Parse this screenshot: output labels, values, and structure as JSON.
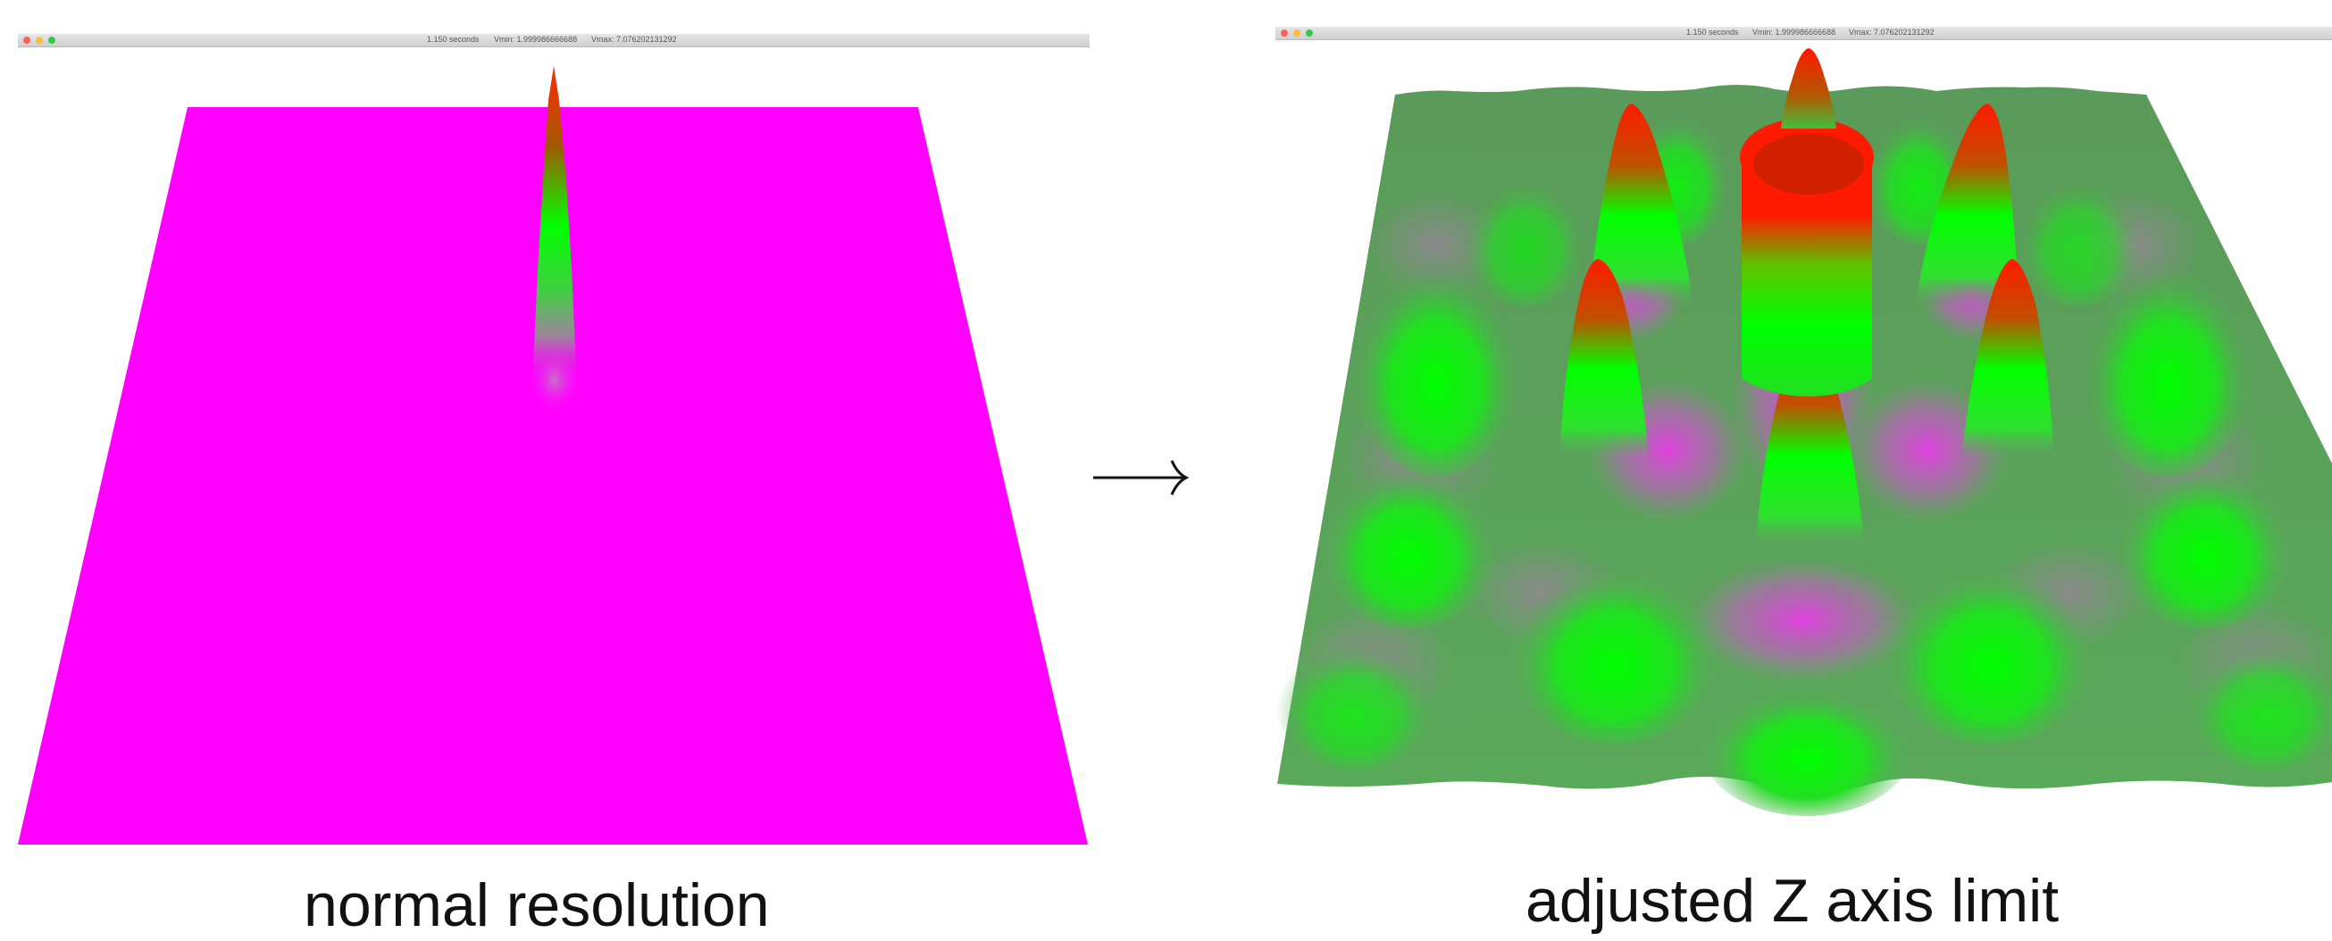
{
  "left_panel": {
    "title_seconds": "1.150 seconds",
    "title_vmin": "Vmin: 1.999986666688",
    "title_vmax": "Vmax: 7.076202131292",
    "caption": "normal resolution"
  },
  "right_panel": {
    "title_seconds": "1.150 seconds",
    "title_vmin": "Vmin: 1.999986666688",
    "title_vmax": "Vmax: 7.076202131292",
    "caption": "adjusted Z axis limit"
  },
  "arrow_icon": "right-arrow-icon",
  "colors": {
    "low": "#ff00ff",
    "mid": "#00ff00",
    "high": "#ff1a00",
    "base": "#5aa85a",
    "neutral": "#8a8a8a"
  }
}
